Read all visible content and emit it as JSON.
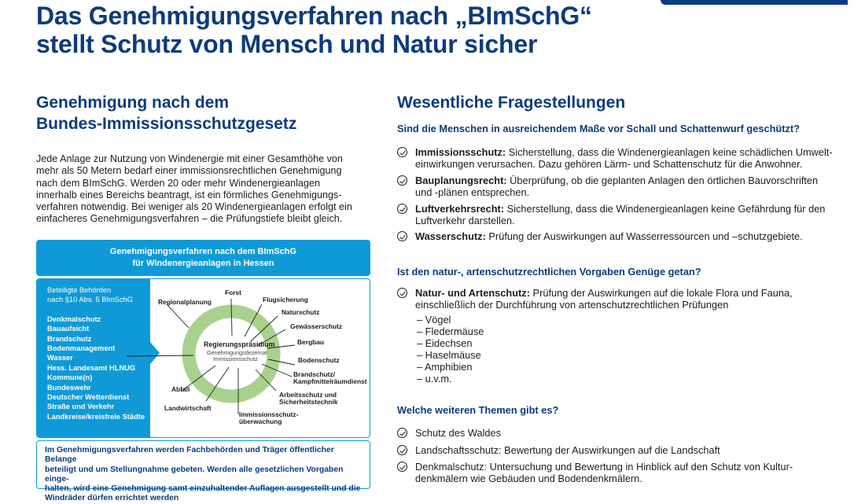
{
  "title": {
    "line1": "Das Genehmigungsverfahren nach „BImSchG“",
    "line2": "stellt Schutz von Mensch und Natur sicher"
  },
  "left": {
    "heading": {
      "line1": "Genehmigung nach dem",
      "line2": "Bundes-Immissionsschutzgesetz"
    },
    "paragraph": [
      "Jede Anlage zur Nutzung von Windenergie mit einer Gesamthöhe von",
      "mehr als 50 Metern bedarf einer immissionsrechtlichen Genehmigung",
      "nach dem BImSchG. Werden 20 oder mehr Windenergieanlagen",
      "innerhalb eines Bereichs beantragt, ist ein förmliches Genehmigungs-",
      "verfahren notwendig. Bei weniger als 20 Windenergieanlagen erfolgt ein",
      "einfacheres Genehmigungsverfahren – die Prüfungstiefe bleibt gleich."
    ],
    "diagram": {
      "header": {
        "line1": "Genehmigungsverfahren nach dem BImSchG",
        "line2": "für Windenergieanlagen in Hessen"
      },
      "panel_title": [
        "Beteiligte Behörden",
        "nach §10 Abs. 5 BImSchG"
      ],
      "authorities": [
        "Denkmalschutz",
        "Bauaufsicht",
        "Brandschutz",
        "Bodenmanagement",
        "Wasser",
        "Hess. Landesamt HLNUG",
        "Kommune(n)",
        "Bundeswehr",
        "Deutscher Wetterdienst",
        "Straße und Verkehr",
        "Landkreise/kreisfreie Städte"
      ],
      "center": {
        "title": "Regierungspräsidium",
        "sub1": "Genehmigungsdezernat",
        "sub2": "Immissionsschutz"
      },
      "spokes": [
        "Forst",
        "Regionalplanung",
        "Flugsicherung",
        "Naturschutz",
        "Gewässerschutz",
        "Bergbau",
        "Bodenschutz",
        "Brandschutz/",
        "Kampfmittelräumdienst",
        "Arbeitsschutz und",
        "Sicherheitstechnik",
        "Immissionsschutz-",
        "überwachung",
        "Landwirtschaft",
        "Abfall"
      ],
      "colors": {
        "blue": "#0f9ad7",
        "ring": "#a9d18e",
        "navy": "#0d3b7d"
      }
    },
    "note": [
      "Im Genehmigungsverfahren werden Fachbehörden und Träger öffentlicher Belange",
      "beteiligt und um Stellungnahme gebeten. Werden alle gesetzlichen Vorgaben einge-",
      "halten, wird eine Genehmigung samt einzuhaltender Auflagen ausgestellt und die",
      "Windräder dürfen errichtet werden"
    ]
  },
  "right": {
    "heading": "Wesentliche Fragestellungen",
    "q1": "Sind die Menschen in ausreichendem Maße vor Schall und Schattenwurf geschützt?",
    "q1_items": [
      {
        "bold": "Immissionsschutz:",
        "text": " Sicherstellung, dass die Windenergieanlagen keine schädlichen Umwelt-einwirkungen verursachen. Dazu gehören Lärm- und Schattenschutz für die Anwohner."
      },
      {
        "bold": "Bauplanungsrecht:",
        "text": " Überprüfung, ob die geplanten Anlagen den örtlichen Bauvorschriften und -plänen entsprechen."
      },
      {
        "bold": "Luftverkehrsrecht:",
        "text": " Sicherstellung, dass die Windenergieanlagen keine Gefährdung für den Luftverkehr darstellen."
      },
      {
        "bold": "Wasserschutz:",
        "text": " Prüfung der Auswirkungen auf Wasserressourcen und –schutzgebiete."
      }
    ],
    "q2": "Ist den natur-, artenschutzrechtlichen Vorgaben Genüge getan?",
    "q2_item": {
      "bold": "Natur- und Artenschutz:",
      "text": " Prüfung der Auswirkungen auf die lokale Flora und Fauna, einschließlich der Durchführung von artenschutzrechtlichen Prüfungen"
    },
    "q2_list": [
      "–  Vögel",
      "–  Fledermäuse",
      "–  Eidechsen",
      "–  Haselmäuse",
      "–  Amphibien",
      "–  u.v.m."
    ],
    "q3": "Welche weiteren Themen gibt es?",
    "q3_items": [
      "Schutz des Waldes",
      "Landschaftsschutz: Bewertung der Auswirkungen auf die Landschaft",
      "Denkmalschutz: Untersuchung und Bewertung in Hinblick auf den Schutz von Kultur-denkmälern wie Gebäuden und Bodendenkmälern."
    ]
  }
}
